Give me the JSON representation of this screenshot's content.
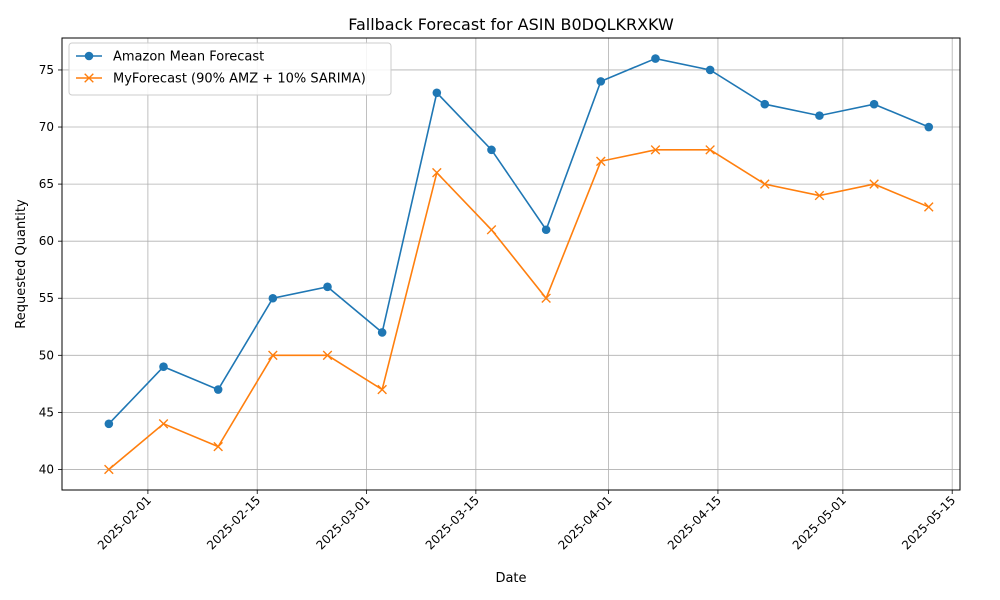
{
  "chart_data": {
    "type": "line",
    "title": "Fallback Forecast for ASIN B0DQLKRXKW",
    "xlabel": "Date",
    "ylabel": "Requested Quantity",
    "x": [
      "2025-01-27",
      "2025-02-03",
      "2025-02-10",
      "2025-02-17",
      "2025-02-24",
      "2025-03-03",
      "2025-03-10",
      "2025-03-17",
      "2025-03-24",
      "2025-03-31",
      "2025-04-07",
      "2025-04-14",
      "2025-04-21",
      "2025-04-28",
      "2025-05-05",
      "2025-05-12"
    ],
    "series": [
      {
        "name": "Amazon Mean Forecast",
        "color": "#1f77b4",
        "marker": "circle",
        "values": [
          44,
          49,
          47,
          55,
          56,
          52,
          73,
          68,
          61,
          74,
          76,
          75,
          72,
          71,
          72,
          70
        ]
      },
      {
        "name": "MyForecast (90% AMZ + 10% SARIMA)",
        "color": "#ff7f0e",
        "marker": "x",
        "values": [
          40,
          44,
          42,
          50,
          50,
          47,
          66,
          61,
          55,
          67,
          68,
          68,
          65,
          64,
          65,
          63
        ]
      }
    ],
    "xlim": [
      "2025-01-21",
      "2025-05-16"
    ],
    "ylim": [
      38.2,
      77.8
    ],
    "x_ticks": [
      "2025-02-01",
      "2025-02-15",
      "2025-03-01",
      "2025-03-15",
      "2025-04-01",
      "2025-04-15",
      "2025-05-01",
      "2025-05-15"
    ],
    "y_ticks": [
      40,
      45,
      50,
      55,
      60,
      65,
      70,
      75
    ],
    "grid": true,
    "legend": "top-left"
  }
}
